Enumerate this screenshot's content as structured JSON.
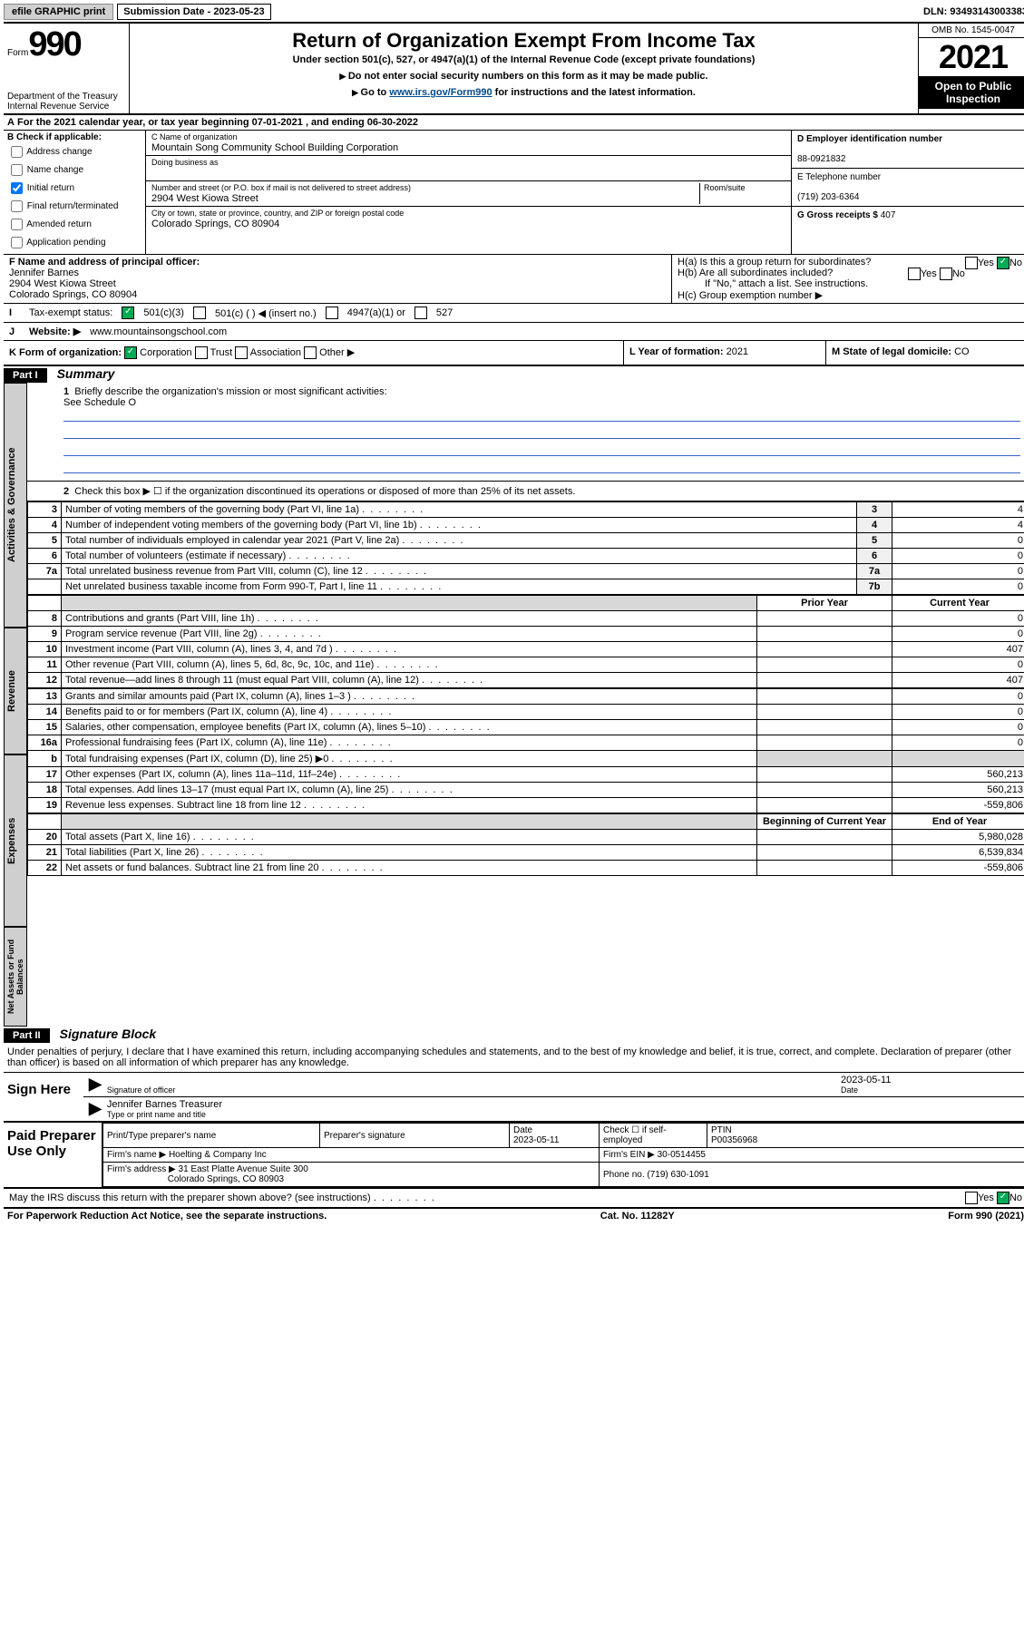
{
  "topbar": {
    "efile": "efile GRAPHIC print",
    "sub_label": "Submission Date - 2023-05-23",
    "dln": "DLN: 93493143003383"
  },
  "header": {
    "form_word": "Form",
    "form_num": "990",
    "title": "Return of Organization Exempt From Income Tax",
    "sub": "Under section 501(c), 527, or 4947(a)(1) of the Internal Revenue Code (except private foundations)",
    "note1": "Do not enter social security numbers on this form as it may be made public.",
    "note2_a": "Go to ",
    "note2_link": "www.irs.gov/Form990",
    "note2_b": " for instructions and the latest information.",
    "dept": "Department of the Treasury\nInternal Revenue Service",
    "omb": "OMB No. 1545-0047",
    "year": "2021",
    "open_pub": "Open to Public Inspection"
  },
  "row_a": "For the 2021 calendar year, or tax year beginning 07-01-2021  , and ending 06-30-2022",
  "col_b": {
    "title": "B Check if applicable:",
    "opts": [
      "Address change",
      "Name change",
      "Initial return",
      "Final return/terminated",
      "Amended return",
      "Application pending"
    ],
    "checked_idx": 2
  },
  "col_c": {
    "name_label": "C Name of organization",
    "name": "Mountain Song Community School Building Corporation",
    "dba_label": "Doing business as",
    "dba": "",
    "addr_label": "Number and street (or P.O. box if mail is not delivered to street address)",
    "room_label": "Room/suite",
    "addr": "2904 West Kiowa Street",
    "city_label": "City or town, state or province, country, and ZIP or foreign postal code",
    "city": "Colorado Springs, CO  80904"
  },
  "col_de": {
    "d_label": "D Employer identification number",
    "d_val": "88-0921832",
    "e_label": "E Telephone number",
    "e_val": "(719) 203-6364",
    "g_label": "G Gross receipts $",
    "g_val": "407"
  },
  "officer": {
    "label": "F  Name and address of principal officer:",
    "name": "Jennifer Barnes",
    "addr1": "2904 West Kiowa Street",
    "addr2": "Colorado Springs, CO  80904"
  },
  "h": {
    "a": "H(a)  Is this a group return for subordinates?",
    "a_ans": "No",
    "b": "H(b)  Are all subordinates included?",
    "b_note": "If \"No,\" attach a list. See instructions.",
    "c": "H(c)  Group exemption number ▶"
  },
  "tax_status": {
    "label": "Tax-exempt status:",
    "opts": [
      "501(c)(3)",
      "501(c) (  ) ◀ (insert no.)",
      "4947(a)(1) or",
      "527"
    ],
    "checked_idx": 0
  },
  "website": {
    "label": "Website: ▶",
    "val": "www.mountainsongschool.com"
  },
  "row_k": {
    "label": "K Form of organization:",
    "opts": [
      "Corporation",
      "Trust",
      "Association",
      "Other ▶"
    ],
    "checked_idx": 0
  },
  "row_l": {
    "label": "L Year of formation:",
    "val": "2021"
  },
  "row_m": {
    "label": "M State of legal domicile:",
    "val": "CO"
  },
  "part1": {
    "hdr": "Part I",
    "title": "Summary"
  },
  "summary": {
    "q1": "Briefly describe the organization's mission or most significant activities:",
    "q1_val": "See Schedule O",
    "q2": "Check this box ▶ ☐  if the organization discontinued its operations or disposed of more than 25% of its net assets.",
    "lines_ag": [
      {
        "n": "3",
        "t": "Number of voting members of the governing body (Part VI, line 1a)",
        "box": "3",
        "v": "4"
      },
      {
        "n": "4",
        "t": "Number of independent voting members of the governing body (Part VI, line 1b)",
        "box": "4",
        "v": "4"
      },
      {
        "n": "5",
        "t": "Total number of individuals employed in calendar year 2021 (Part V, line 2a)",
        "box": "5",
        "v": "0"
      },
      {
        "n": "6",
        "t": "Total number of volunteers (estimate if necessary)",
        "box": "6",
        "v": "0"
      },
      {
        "n": "7a",
        "t": "Total unrelated business revenue from Part VIII, column (C), line 12",
        "box": "7a",
        "v": "0"
      },
      {
        "n": "",
        "t": "Net unrelated business taxable income from Form 990-T, Part I, line 11",
        "box": "7b",
        "v": "0"
      }
    ],
    "pyr_hdr": "Prior Year",
    "cyr_hdr": "Current Year",
    "rev": [
      {
        "n": "8",
        "t": "Contributions and grants (Part VIII, line 1h)",
        "p": "",
        "c": "0"
      },
      {
        "n": "9",
        "t": "Program service revenue (Part VIII, line 2g)",
        "p": "",
        "c": "0"
      },
      {
        "n": "10",
        "t": "Investment income (Part VIII, column (A), lines 3, 4, and 7d )",
        "p": "",
        "c": "407"
      },
      {
        "n": "11",
        "t": "Other revenue (Part VIII, column (A), lines 5, 6d, 8c, 9c, 10c, and 11e)",
        "p": "",
        "c": "0"
      },
      {
        "n": "12",
        "t": "Total revenue—add lines 8 through 11 (must equal Part VIII, column (A), line 12)",
        "p": "",
        "c": "407"
      }
    ],
    "exp": [
      {
        "n": "13",
        "t": "Grants and similar amounts paid (Part IX, column (A), lines 1–3 )",
        "p": "",
        "c": "0"
      },
      {
        "n": "14",
        "t": "Benefits paid to or for members (Part IX, column (A), line 4)",
        "p": "",
        "c": "0"
      },
      {
        "n": "15",
        "t": "Salaries, other compensation, employee benefits (Part IX, column (A), lines 5–10)",
        "p": "",
        "c": "0"
      },
      {
        "n": "16a",
        "t": "Professional fundraising fees (Part IX, column (A), line 11e)",
        "p": "",
        "c": "0"
      },
      {
        "n": "b",
        "t": "Total fundraising expenses (Part IX, column (D), line 25) ▶0",
        "p": "shade",
        "c": "shade"
      },
      {
        "n": "17",
        "t": "Other expenses (Part IX, column (A), lines 11a–11d, 11f–24e)",
        "p": "",
        "c": "560,213"
      },
      {
        "n": "18",
        "t": "Total expenses. Add lines 13–17 (must equal Part IX, column (A), line 25)",
        "p": "",
        "c": "560,213"
      },
      {
        "n": "19",
        "t": "Revenue less expenses. Subtract line 18 from line 12",
        "p": "",
        "c": "-559,806"
      }
    ],
    "bcy_hdr": "Beginning of Current Year",
    "eoy_hdr": "End of Year",
    "net": [
      {
        "n": "20",
        "t": "Total assets (Part X, line 16)",
        "p": "",
        "c": "5,980,028"
      },
      {
        "n": "21",
        "t": "Total liabilities (Part X, line 26)",
        "p": "",
        "c": "6,539,834"
      },
      {
        "n": "22",
        "t": "Net assets or fund balances. Subtract line 21 from line 20",
        "p": "",
        "c": "-559,806"
      }
    ],
    "vtabs": [
      "Activities & Governance",
      "Revenue",
      "Expenses",
      "Net Assets or Fund Balances"
    ]
  },
  "part2": {
    "hdr": "Part II",
    "title": "Signature Block"
  },
  "declare": "Under penalties of perjury, I declare that I have examined this return, including accompanying schedules and statements, and to the best of my knowledge and belief, it is true, correct, and complete. Declaration of preparer (other than officer) is based on all information of which preparer has any knowledge.",
  "sign": {
    "side": "Sign Here",
    "sig_cap": "Signature of officer",
    "date": "2023-05-11",
    "date_cap": "Date",
    "name": "Jennifer Barnes Treasurer",
    "name_cap": "Type or print name and title"
  },
  "prep": {
    "side": "Paid Preparer Use Only",
    "r1": {
      "c1": "Print/Type preparer's name",
      "c2": "Preparer's signature",
      "c3_l": "Date",
      "c3_v": "2023-05-11",
      "c4": "Check ☐ if self-employed",
      "c5_l": "PTIN",
      "c5_v": "P00356968"
    },
    "r2": {
      "c1_l": "Firm's name    ▶",
      "c1_v": "Hoelting & Company Inc",
      "c2_l": "Firm's EIN ▶",
      "c2_v": "30-0514455"
    },
    "r3": {
      "c1_l": "Firm's address ▶",
      "c1_v": "31 East Platte Avenue Suite 300",
      "c2_l": "Phone no.",
      "c2_v": "(719) 630-1091"
    },
    "r3b": {
      "c1_v": "Colorado Springs, CO  80903"
    }
  },
  "may_discuss": {
    "q": "May the IRS discuss this return with the preparer shown above? (see instructions)",
    "ans": "No"
  },
  "footer": {
    "left": "For Paperwork Reduction Act Notice, see the separate instructions.",
    "mid": "Cat. No. 11282Y",
    "right": "Form 990 (2021)"
  }
}
